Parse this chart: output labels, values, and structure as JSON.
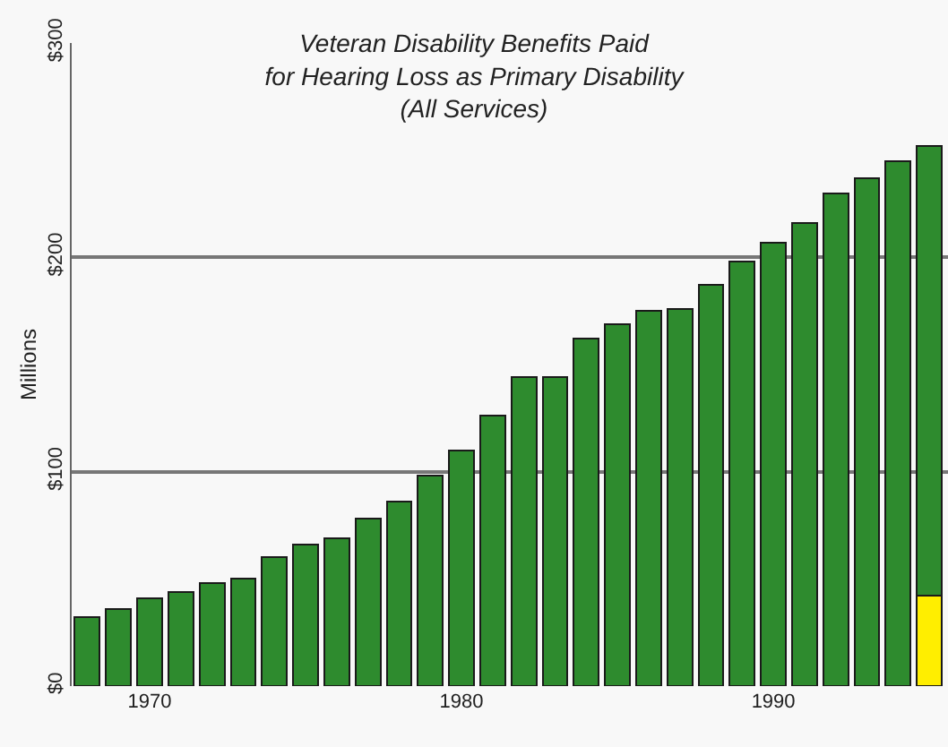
{
  "chart_data": {
    "type": "bar",
    "title": "Veteran Disability Benefits Paid\nfor Hearing Loss as Primary Disability\n(All Services)",
    "ylabel": "Millions",
    "stacked": true,
    "x": [
      1968,
      1969,
      1970,
      1971,
      1972,
      1973,
      1974,
      1975,
      1976,
      1977,
      1978,
      1979,
      1980,
      1981,
      1982,
      1983,
      1984,
      1985,
      1986,
      1987,
      1988,
      1989,
      1990,
      1991,
      1992,
      1993,
      1994,
      1995
    ],
    "series": [
      {
        "color": "#ffee00",
        "values": [
          null,
          null,
          null,
          null,
          null,
          null,
          null,
          null,
          null,
          null,
          null,
          null,
          null,
          null,
          null,
          null,
          null,
          null,
          null,
          null,
          null,
          null,
          null,
          null,
          null,
          null,
          null,
          42
        ]
      },
      {
        "color": "#2e8b2e",
        "values": [
          32,
          36,
          41,
          44,
          48,
          50,
          60,
          66,
          69,
          78,
          86,
          98,
          110,
          126,
          144,
          144,
          162,
          169,
          175,
          176,
          187,
          198,
          207,
          216,
          230,
          237,
          245,
          210
        ]
      }
    ],
    "xlim": [
      1967.5,
      1995.6
    ],
    "xticks": [
      1970,
      1980,
      1990
    ],
    "ylim": [
      0,
      300
    ],
    "yticks": [
      {
        "value": 0,
        "label": "$0"
      },
      {
        "value": 100,
        "label": "$100"
      },
      {
        "value": 200,
        "label": "$200"
      },
      {
        "value": 300,
        "label": "$300"
      }
    ],
    "grid": "y"
  }
}
